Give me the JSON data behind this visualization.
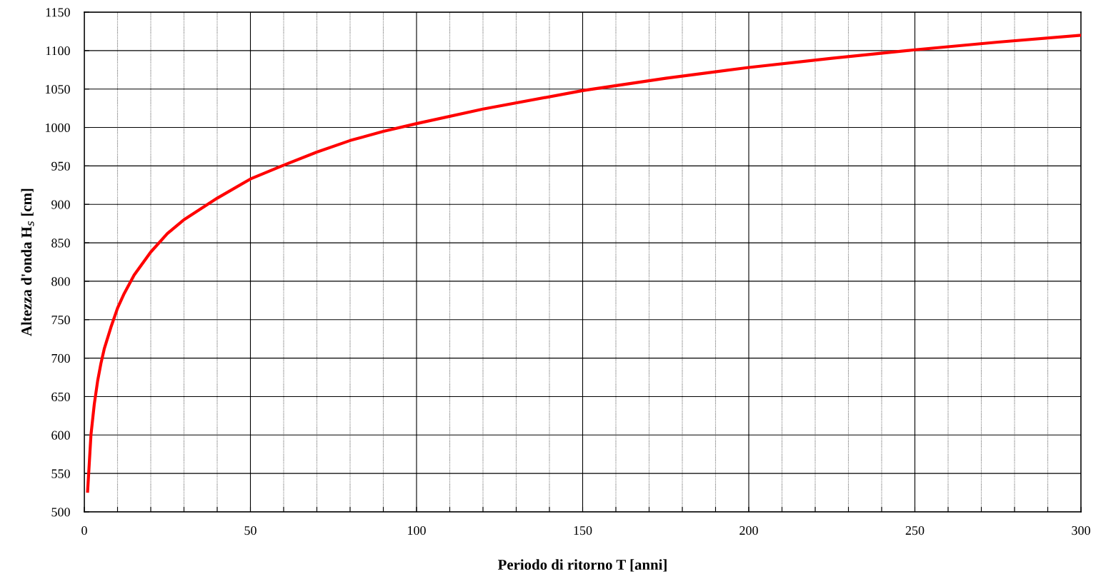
{
  "chart_data": {
    "type": "line",
    "xlabel": "Periodo di ritorno T [anni]",
    "ylabel": "Altezza d'onda H$_{s}$ [cm]",
    "x": [
      1,
      2,
      3,
      4,
      5,
      6,
      8,
      10,
      12,
      15,
      20,
      25,
      30,
      40,
      50,
      60,
      70,
      80,
      90,
      100,
      120,
      150,
      175,
      200,
      225,
      250,
      275,
      300
    ],
    "series": [
      {
        "color": "#ff0000",
        "values": [
          527,
          600,
          640,
          670,
          693,
          712,
          740,
          765,
          784,
          808,
          838,
          862,
          880,
          908,
          933,
          951,
          968,
          983,
          995,
          1005,
          1024,
          1048,
          1064,
          1078,
          1090,
          1101,
          1111,
          1120
        ]
      }
    ],
    "xlim": [
      0,
      300
    ],
    "xticks": [
      0,
      {
        "value": 10,
        "label": null
      },
      {
        "value": 20,
        "label": null
      },
      {
        "value": 30,
        "label": null
      },
      {
        "value": 40,
        "label": null
      },
      50,
      {
        "value": 60,
        "label": null
      },
      {
        "value": 70,
        "label": null
      },
      {
        "value": 80,
        "label": null
      },
      {
        "value": 90,
        "label": null
      },
      100,
      {
        "value": 110,
        "label": null
      },
      {
        "value": 120,
        "label": null
      },
      {
        "value": 130,
        "label": null
      },
      {
        "value": 140,
        "label": null
      },
      150,
      {
        "value": 160,
        "label": null
      },
      {
        "value": 170,
        "label": null
      },
      {
        "value": 180,
        "label": null
      },
      {
        "value": 190,
        "label": null
      },
      200,
      {
        "value": 210,
        "label": null
      },
      {
        "value": 220,
        "label": null
      },
      {
        "value": 230,
        "label": null
      },
      {
        "value": 240,
        "label": null
      },
      250,
      {
        "value": 260,
        "label": null
      },
      {
        "value": 270,
        "label": null
      },
      {
        "value": 280,
        "label": null
      },
      {
        "value": 290,
        "label": null
      },
      300
    ],
    "ylim": [
      500,
      1150
    ],
    "yticks": [
      500,
      550,
      600,
      650,
      700,
      750,
      800,
      850,
      900,
      950,
      1000,
      1050,
      1100,
      1150
    ],
    "grid": true,
    "marker": "none",
    "line_style": "solid"
  }
}
